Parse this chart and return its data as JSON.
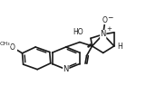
{
  "background_color": "#ffffff",
  "line_color": "#1a1a1a",
  "line_width": 1.2,
  "figsize": [
    1.72,
    1.05
  ],
  "dpi": 100,
  "xlim": [
    0,
    1
  ],
  "ylim": [
    0,
    1
  ]
}
